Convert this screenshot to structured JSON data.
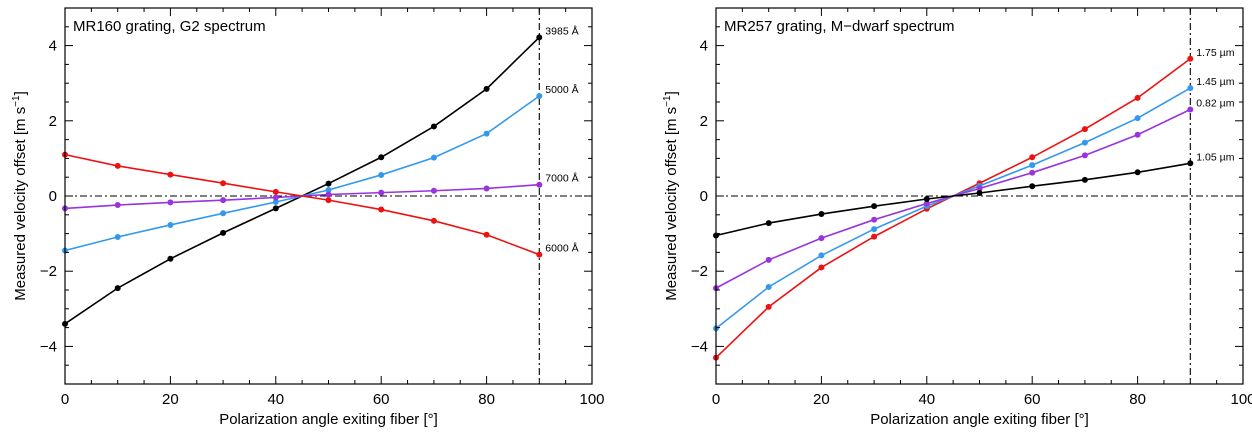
{
  "figure": {
    "panels": [
      "left",
      "right"
    ]
  },
  "chart_data": [
    {
      "type": "line",
      "title": "MR160 grating, G2 spectrum",
      "xlabel": "Polarization angle exiting fiber [°]",
      "ylabel": "Measured velocity offset [m s",
      "ylabel_unit_sup": "−1",
      "ylabel_close": "]",
      "xlim": [
        0,
        100
      ],
      "ylim": [
        -5,
        5
      ],
      "xticks": [
        0,
        20,
        40,
        60,
        80,
        100
      ],
      "xtick_labels": [
        "0",
        "20",
        "40",
        "60",
        "80",
        "100"
      ],
      "yticks": [
        -4,
        -2,
        0,
        2,
        4
      ],
      "ytick_labels": [
        "−4",
        "−2",
        "0",
        "2",
        "4"
      ],
      "reference_lines": {
        "horizontal_y": 0,
        "vertical_x": 90,
        "style": "dash-dot"
      },
      "grid": false,
      "x": [
        0,
        10,
        20,
        30,
        40,
        50,
        60,
        70,
        80,
        90
      ],
      "series": [
        {
          "name": "3985 Å",
          "color": "#000000",
          "values": [
            -3.4,
            -2.45,
            -1.67,
            -0.98,
            -0.33,
            0.33,
            1.03,
            1.85,
            2.85,
            4.22
          ]
        },
        {
          "name": "5000 Å",
          "color": "#3399ee",
          "values": [
            -1.45,
            -1.09,
            -0.77,
            -0.46,
            -0.16,
            0.16,
            0.56,
            1.02,
            1.66,
            2.66
          ]
        },
        {
          "name": "7000 Å",
          "color": "#9933dd",
          "values": [
            -0.33,
            -0.24,
            -0.17,
            -0.11,
            -0.04,
            0.04,
            0.09,
            0.14,
            0.2,
            0.3
          ]
        },
        {
          "name": "6000 Å",
          "color": "#ee1111",
          "values": [
            1.1,
            0.8,
            0.57,
            0.34,
            0.11,
            -0.11,
            -0.36,
            -0.66,
            -1.03,
            -1.56
          ]
        }
      ]
    },
    {
      "type": "line",
      "title": "MR257 grating, M−dwarf spectrum",
      "xlabel": "Polarization angle exiting fiber [°]",
      "ylabel": "Measured velocity offset [m s",
      "ylabel_unit_sup": "−1",
      "ylabel_close": "]",
      "xlim": [
        0,
        100
      ],
      "ylim": [
        -5,
        5
      ],
      "xticks": [
        0,
        20,
        40,
        60,
        80,
        100
      ],
      "xtick_labels": [
        "0",
        "20",
        "40",
        "60",
        "80",
        "100"
      ],
      "yticks": [
        -4,
        -2,
        0,
        2,
        4
      ],
      "ytick_labels": [
        "−4",
        "−2",
        "0",
        "2",
        "4"
      ],
      "reference_lines": {
        "horizontal_y": 0,
        "vertical_x": 90,
        "style": "dash-dot"
      },
      "grid": false,
      "x": [
        0,
        10,
        20,
        30,
        40,
        50,
        60,
        70,
        80,
        90
      ],
      "series": [
        {
          "name": "1.75 µm",
          "color": "#ee1111",
          "values": [
            -4.3,
            -2.95,
            -1.9,
            -1.08,
            -0.34,
            0.34,
            1.03,
            1.78,
            2.61,
            3.65
          ]
        },
        {
          "name": "1.45 µm",
          "color": "#3399ee",
          "values": [
            -3.52,
            -2.42,
            -1.58,
            -0.88,
            -0.27,
            0.27,
            0.82,
            1.42,
            2.07,
            2.87
          ]
        },
        {
          "name": "0.82 µm",
          "color": "#9933dd",
          "values": [
            -2.45,
            -1.7,
            -1.12,
            -0.63,
            -0.2,
            0.2,
            0.62,
            1.08,
            1.63,
            2.3
          ]
        },
        {
          "name": "1.05 µm",
          "color": "#000000",
          "values": [
            -1.05,
            -0.72,
            -0.48,
            -0.27,
            -0.08,
            0.08,
            0.26,
            0.43,
            0.63,
            0.87
          ]
        }
      ]
    }
  ]
}
